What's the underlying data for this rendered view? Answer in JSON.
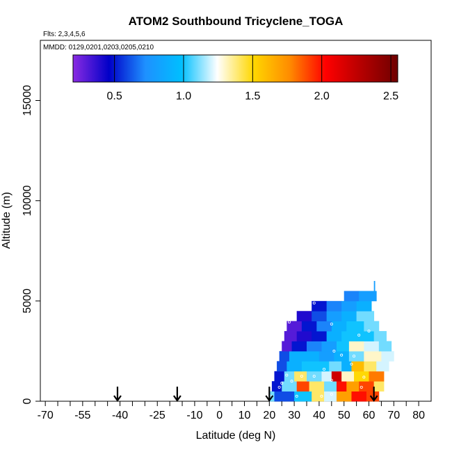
{
  "chart_data": {
    "type": "heatmap",
    "title": "ATOM2 Southbound Tricyclene_TOGA",
    "flights_note": "Flts: 2,3,4,5,6",
    "dates_note": "MMDD: 0129,0201,0203,0205,0210",
    "xlabel": "Latitude (deg N)",
    "ylabel": "Altitude (m)",
    "xlim": [
      -72,
      85
    ],
    "ylim": [
      0,
      18000
    ],
    "x_ticks": [
      -70,
      -55,
      -40,
      -25,
      -10,
      0,
      10,
      20,
      30,
      40,
      50,
      60,
      70,
      80
    ],
    "x_tick_labels": [
      "-70",
      "-55",
      "-40",
      "-25",
      "-10",
      "0",
      "10",
      "20",
      "30",
      "40",
      "50",
      "60",
      "70",
      "80"
    ],
    "y_ticks": [
      0,
      5000,
      10000,
      15000
    ],
    "y_tick_labels": [
      "0",
      "5000",
      "10000",
      "15000"
    ],
    "colorbar": {
      "min": 0.2,
      "max": 2.55,
      "ticks": [
        0.5,
        1.0,
        1.5,
        2.0,
        2.5
      ],
      "tick_labels": [
        "0.5",
        "1.0",
        "1.5",
        "2.0",
        "2.5"
      ],
      "colors": [
        "#8a2be2",
        "#0000c8",
        "#1e90ff",
        "#00bfff",
        "#ffffff",
        "#ffd700",
        "#ff8c00",
        "#ff0000",
        "#b40000",
        "#6e0000"
      ]
    },
    "arrow_latitudes": [
      -41,
      -17,
      20,
      62
    ],
    "rows": [
      {
        "alt_bottom": 0,
        "alt_top": 500,
        "cells": [
          [
            20,
            22,
            1.1
          ],
          [
            22,
            30,
            0.6
          ],
          [
            30,
            37,
            1.0
          ],
          [
            37,
            42,
            1.4
          ],
          [
            42,
            47,
            1.2
          ],
          [
            47,
            53,
            1.7
          ],
          [
            53,
            59,
            2.0
          ],
          [
            59,
            64,
            1.9
          ]
        ]
      },
      {
        "alt_bottom": 500,
        "alt_top": 1000,
        "cells": [
          [
            21,
            25,
            0.5
          ],
          [
            25,
            31,
            1.1
          ],
          [
            31,
            36,
            1.9
          ],
          [
            36,
            42,
            1.4
          ],
          [
            42,
            47,
            1.1
          ],
          [
            47,
            51,
            2.0
          ],
          [
            51,
            56,
            1.7
          ],
          [
            56,
            62,
            1.9
          ],
          [
            62,
            66,
            1.4
          ]
        ]
      },
      {
        "alt_bottom": 1000,
        "alt_top": 1500,
        "cells": [
          [
            22,
            26,
            0.5
          ],
          [
            26,
            30,
            1.1
          ],
          [
            30,
            35,
            1.4
          ],
          [
            35,
            41,
            1.1
          ],
          [
            41,
            45,
            1.2
          ],
          [
            45,
            49,
            2.2
          ],
          [
            49,
            54,
            1.3
          ],
          [
            54,
            60,
            1.5
          ],
          [
            60,
            66,
            1.8
          ]
        ]
      },
      {
        "alt_bottom": 1500,
        "alt_top": 2000,
        "cells": [
          [
            23,
            27,
            0.6
          ],
          [
            27,
            33,
            0.9
          ],
          [
            33,
            38,
            1.0
          ],
          [
            38,
            44,
            1.0
          ],
          [
            44,
            49,
            1.1
          ],
          [
            49,
            53,
            0.9
          ],
          [
            53,
            58,
            1.6
          ],
          [
            58,
            63,
            1.4
          ],
          [
            63,
            68,
            1.2
          ]
        ]
      },
      {
        "alt_bottom": 2000,
        "alt_top": 2500,
        "cells": [
          [
            24,
            28,
            0.6
          ],
          [
            28,
            34,
            0.9
          ],
          [
            34,
            40,
            0.9
          ],
          [
            40,
            46,
            0.8
          ],
          [
            46,
            52,
            0.9
          ],
          [
            52,
            58,
            1.1
          ],
          [
            58,
            65,
            1.3
          ],
          [
            65,
            70,
            1.2
          ]
        ]
      },
      {
        "alt_bottom": 2500,
        "alt_top": 3000,
        "cells": [
          [
            25,
            29,
            0.3
          ],
          [
            29,
            35,
            0.5
          ],
          [
            35,
            41,
            0.7
          ],
          [
            41,
            47,
            0.8
          ],
          [
            47,
            52,
            1.0
          ],
          [
            52,
            58,
            1.3
          ],
          [
            58,
            64,
            1.2
          ],
          [
            64,
            69,
            1.1
          ]
        ]
      },
      {
        "alt_bottom": 3000,
        "alt_top": 3500,
        "cells": [
          [
            26,
            31,
            0.3
          ],
          [
            31,
            37,
            0.4
          ],
          [
            37,
            43,
            0.5
          ],
          [
            43,
            49,
            0.9
          ],
          [
            49,
            55,
            1.0
          ],
          [
            55,
            62,
            1.0
          ],
          [
            62,
            67,
            1.1
          ]
        ]
      },
      {
        "alt_bottom": 3500,
        "alt_top": 4000,
        "cells": [
          [
            27,
            33,
            0.3
          ],
          [
            33,
            39,
            0.5
          ],
          [
            39,
            45,
            0.7
          ],
          [
            45,
            51,
            0.9
          ],
          [
            51,
            58,
            1.0
          ],
          [
            58,
            64,
            1.1
          ]
        ]
      },
      {
        "alt_bottom": 4000,
        "alt_top": 4500,
        "cells": [
          [
            31,
            37,
            0.4
          ],
          [
            37,
            43,
            0.6
          ],
          [
            43,
            49,
            0.8
          ],
          [
            49,
            55,
            0.9
          ],
          [
            55,
            62,
            1.1
          ]
        ]
      },
      {
        "alt_bottom": 4500,
        "alt_top": 5000,
        "cells": [
          [
            37,
            43,
            0.5
          ],
          [
            43,
            49,
            0.7
          ],
          [
            49,
            55,
            0.8
          ],
          [
            55,
            61,
            0.9
          ]
        ]
      },
      {
        "alt_bottom": 5000,
        "alt_top": 5500,
        "cells": [
          [
            50,
            56,
            0.7
          ],
          [
            56,
            63,
            0.8
          ]
        ]
      },
      {
        "alt_bottom": 5500,
        "alt_top": 6000,
        "cells": [
          [
            62,
            62.4,
            0.8
          ]
        ]
      }
    ],
    "samples": [
      [
        20.5,
        250
      ],
      [
        24,
        700
      ],
      [
        25,
        900
      ],
      [
        27,
        1300
      ],
      [
        29,
        1000
      ],
      [
        31,
        250
      ],
      [
        33,
        1250
      ],
      [
        41,
        250
      ],
      [
        45,
        350
      ],
      [
        49,
        2300
      ],
      [
        53,
        1850
      ],
      [
        57,
        700
      ],
      [
        58,
        1200
      ],
      [
        60,
        3500
      ],
      [
        45,
        1050
      ],
      [
        38,
        4900
      ],
      [
        38,
        1250
      ],
      [
        42,
        1600
      ],
      [
        46,
        2500
      ],
      [
        54,
        2250
      ],
      [
        56,
        3300
      ],
      [
        28,
        3950
      ],
      [
        45,
        3850
      ]
    ]
  }
}
